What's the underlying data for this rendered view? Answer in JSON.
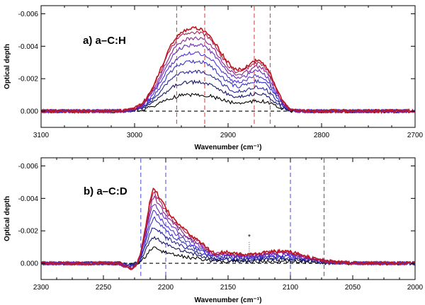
{
  "chart_data": [
    {
      "type": "line",
      "title": "a) a–C:H",
      "xlabel": "Wavenumber (cm⁻¹)",
      "ylabel": "Optical depth",
      "xlim": [
        3100,
        2700
      ],
      "ylim": [
        0.001,
        -0.0065
      ],
      "xticks": [
        3100,
        3000,
        2900,
        2800,
        2700
      ],
      "xtick_labels": [
        "3100",
        "3000",
        "2900",
        "2800",
        "2700"
      ],
      "yticks": [
        0.0,
        -0.002,
        -0.004,
        -0.006
      ],
      "ytick_labels": [
        "0.000",
        "-0.002",
        "-0.004",
        "-0.006"
      ],
      "vlines": [
        2955,
        2925,
        2872,
        2855
      ],
      "vline_color": "#d03a3a",
      "baseline": 0,
      "profile": {
        "peaks": [
          {
            "center": 2955,
            "width": 18,
            "amp": -0.004
          },
          {
            "center": 2925,
            "width": 16,
            "amp": -0.0029
          },
          {
            "center": 2900,
            "width": 22,
            "amp": -0.002
          },
          {
            "center": 2870,
            "width": 12,
            "amp": -0.0019
          },
          {
            "center": 2855,
            "width": 10,
            "amp": -0.0012
          }
        ]
      },
      "series_scales": [
        0.2,
        0.35,
        0.48,
        0.6,
        0.7,
        0.8,
        0.88,
        0.95,
        1.0
      ],
      "series_colors": [
        "#000000",
        "#141466",
        "#262699",
        "#3434c8",
        "#4f2fd8",
        "#6a2ab8",
        "#8a2290",
        "#a81c55",
        "#c0161e"
      ]
    },
    {
      "type": "line",
      "title": "b) a–C:D",
      "xlabel": "Wavenumber (cm⁻¹)",
      "ylabel": "Optical depth",
      "xlim": [
        2300,
        2000
      ],
      "ylim": [
        0.001,
        -0.0065
      ],
      "xticks": [
        2300,
        2250,
        2200,
        2150,
        2100,
        2050,
        2000
      ],
      "xtick_labels": [
        "2300",
        "2250",
        "2200",
        "2150",
        "2100",
        "2050",
        "2000"
      ],
      "yticks": [
        0.0,
        -0.002,
        -0.004,
        -0.006
      ],
      "ytick_labels": [
        "0.000",
        "-0.002",
        "-0.004",
        "-0.006"
      ],
      "vlines": [
        2220,
        2200,
        2100,
        2073
      ],
      "vline_color": "#4a4ad8",
      "baseline": 0,
      "annotation": {
        "text": "*",
        "x": 2133
      },
      "profile": {
        "asym_peak": {
          "center": 2209,
          "amp": -0.0046,
          "rise": 6,
          "decay": 30
        },
        "peaks": [
          {
            "center": 2105,
            "width": 18,
            "amp": -0.0006
          }
        ]
      },
      "series_scales": [
        0.2,
        0.35,
        0.48,
        0.6,
        0.7,
        0.8,
        0.88,
        0.95,
        1.0
      ],
      "series_colors": [
        "#000000",
        "#141466",
        "#262699",
        "#3434c8",
        "#4f2fd8",
        "#6a2ab8",
        "#8a2290",
        "#a81c55",
        "#c0161e"
      ]
    }
  ]
}
